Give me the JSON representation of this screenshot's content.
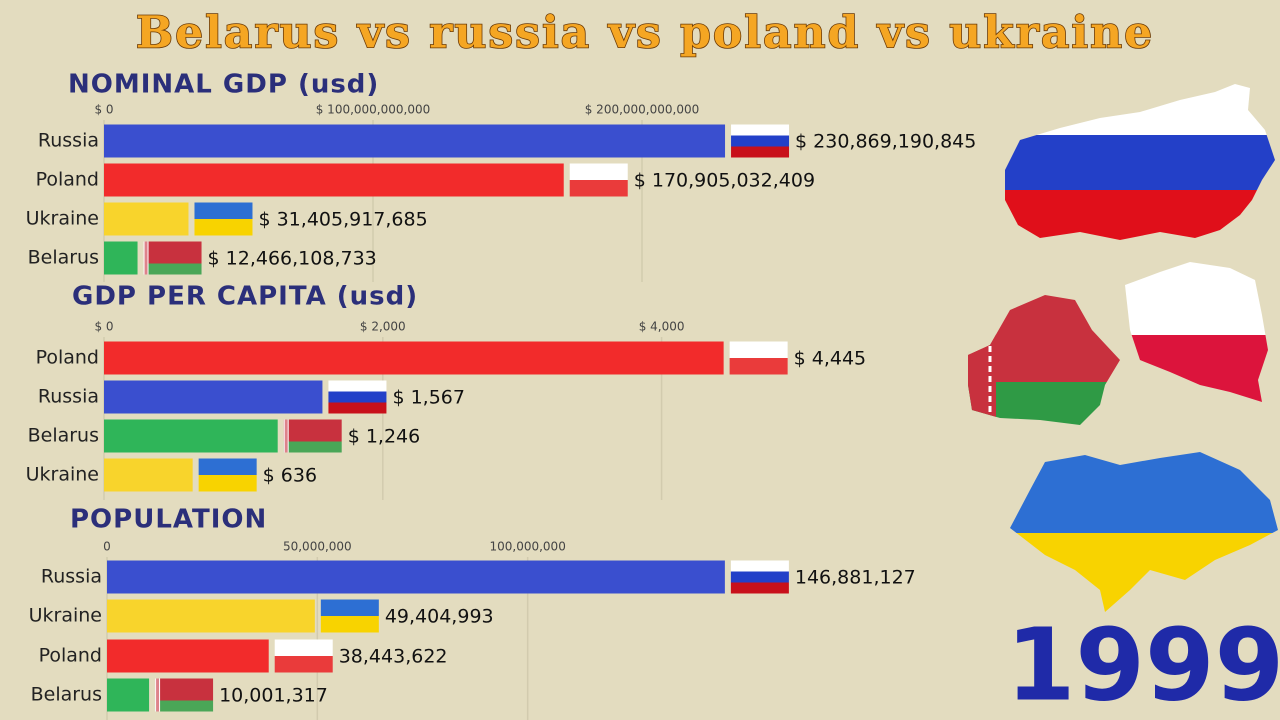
{
  "title": "Belarus vs russia vs poland vs ukraine",
  "year": "1999",
  "chart_data": [
    {
      "type": "bar",
      "title": "NOMINAL GDP (usd)",
      "categories": [
        "Russia",
        "Poland",
        "Ukraine",
        "Belarus"
      ],
      "values": [
        230869190845,
        170905032409,
        31405917685,
        12466108733
      ],
      "value_labels": [
        "$ 230,869,190,845",
        "$ 170,905,032,409",
        "$ 31,405,917,685",
        "$ 12,466,108,733"
      ],
      "colors": [
        "#3a4fcf",
        "#f22b2b",
        "#f8d42c",
        "#2fb559"
      ],
      "xlim": [
        0,
        250000000000
      ],
      "xticks": [
        {
          "value": 0,
          "label": "$ 0"
        },
        {
          "value": 100000000000,
          "label": "$ 100,000,000,000"
        },
        {
          "value": 200000000000,
          "label": "$ 200,000,000,000"
        }
      ],
      "grid": true
    },
    {
      "type": "bar",
      "title": "GDP PER CAPITA (usd)",
      "categories": [
        "Poland",
        "Russia",
        "Belarus",
        "Ukraine"
      ],
      "values": [
        4445,
        1567,
        1246,
        636
      ],
      "value_labels": [
        "$ 4,445",
        "$ 1,567",
        "$ 1,246",
        "$ 636"
      ],
      "colors": [
        "#f22b2b",
        "#3a4fcf",
        "#2fb559",
        "#f8d42c"
      ],
      "xlim": [
        0,
        5000
      ],
      "xticks": [
        {
          "value": 0,
          "label": "$ 0"
        },
        {
          "value": 2000,
          "label": "$ 2,000"
        },
        {
          "value": 4000,
          "label": "$ 4,000"
        }
      ],
      "grid": true
    },
    {
      "type": "bar",
      "title": "POPULATION",
      "categories": [
        "Russia",
        "Ukraine",
        "Poland",
        "Belarus"
      ],
      "values": [
        146881127,
        49404993,
        38443622,
        10001317
      ],
      "value_labels": [
        "146,881,127",
        "49,404,993",
        "38,443,622",
        "10,001,317"
      ],
      "colors": [
        "#3a4fcf",
        "#f8d42c",
        "#f22b2b",
        "#2fb559"
      ],
      "xlim": [
        0,
        150000000
      ],
      "xticks": [
        0,
        {
          "value": 50000000,
          "label": "50,000,000"
        },
        {
          "value": 100000000,
          "label": "100,000,000"
        }
      ],
      "grid": true
    }
  ]
}
